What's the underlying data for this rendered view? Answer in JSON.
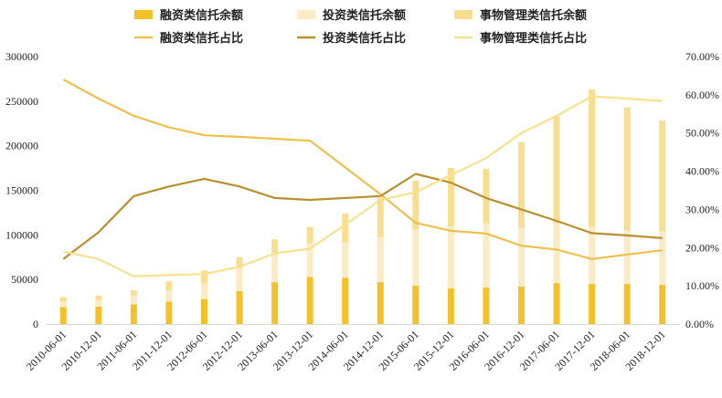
{
  "chart_data": {
    "type": "bar",
    "categories": [
      "2010-06-01",
      "2010-12-01",
      "2011-06-01",
      "2011-12-01",
      "2012-06-01",
      "2012-12-01",
      "2013-06-01",
      "2013-12-01",
      "2014-06-01",
      "2014-12-01",
      "2015-06-01",
      "2015-12-01",
      "2016-06-01",
      "2016-12-01",
      "2017-06-01",
      "2017-12-01",
      "2018-06-01",
      "2018-12-01"
    ],
    "bar_series": [
      {
        "name": "融资类信托余额",
        "color": "#F3C22B",
        "values": [
          19000,
          19500,
          22000,
          25000,
          28000,
          37000,
          47000,
          53000,
          52000,
          47000,
          43000,
          40000,
          41000,
          42000,
          46000,
          45000,
          45000,
          44000
        ]
      },
      {
        "name": "投资类信托余额",
        "color": "#FBEBC4",
        "values": [
          6000,
          7000,
          10000,
          13000,
          18000,
          26000,
          33000,
          38000,
          40000,
          50000,
          63000,
          70000,
          72000,
          66000,
          67000,
          64000,
          60000,
          60000
        ]
      },
      {
        "name": "事物管理类信托余额",
        "color": "#F8DE8E",
        "values": [
          5000,
          5500,
          6000,
          10000,
          14000,
          12000,
          15000,
          18000,
          32000,
          45000,
          55000,
          65000,
          61000,
          96000,
          120000,
          154000,
          138000,
          124000
        ]
      }
    ],
    "line_series": [
      {
        "name": "融资类信托占比",
        "color": "#EDC04F",
        "values": [
          0.64,
          0.59,
          0.545,
          0.515,
          0.494,
          0.49,
          0.485,
          0.48,
          0.41,
          0.34,
          0.265,
          0.244,
          0.237,
          0.205,
          0.195,
          0.17,
          0.182,
          0.193
        ]
      },
      {
        "name": "投资类信托占比",
        "color": "#B8902F",
        "values": [
          0.17,
          0.24,
          0.335,
          0.36,
          0.38,
          0.36,
          0.33,
          0.325,
          0.33,
          0.335,
          0.393,
          0.37,
          0.33,
          0.3,
          0.27,
          0.238,
          0.232,
          0.225
        ]
      },
      {
        "name": "事物管理类信托占比",
        "color": "#F6E28F",
        "values": [
          0.19,
          0.17,
          0.125,
          0.128,
          0.131,
          0.15,
          0.185,
          0.197,
          0.26,
          0.325,
          0.345,
          0.39,
          0.434,
          0.5,
          0.545,
          0.596,
          0.59,
          0.584
        ]
      }
    ],
    "y_left": {
      "min": 0,
      "max": 300000,
      "ticks": [
        0,
        50000,
        100000,
        150000,
        200000,
        250000,
        300000
      ]
    },
    "y_right": {
      "min": 0,
      "max": 0.7,
      "tick_labels": [
        "0.00%",
        "10.00%",
        "20.00%",
        "30.00%",
        "40.00%",
        "50.00%",
        "60.00%",
        "70.00%"
      ]
    },
    "legend_position": "top",
    "grid": false
  }
}
